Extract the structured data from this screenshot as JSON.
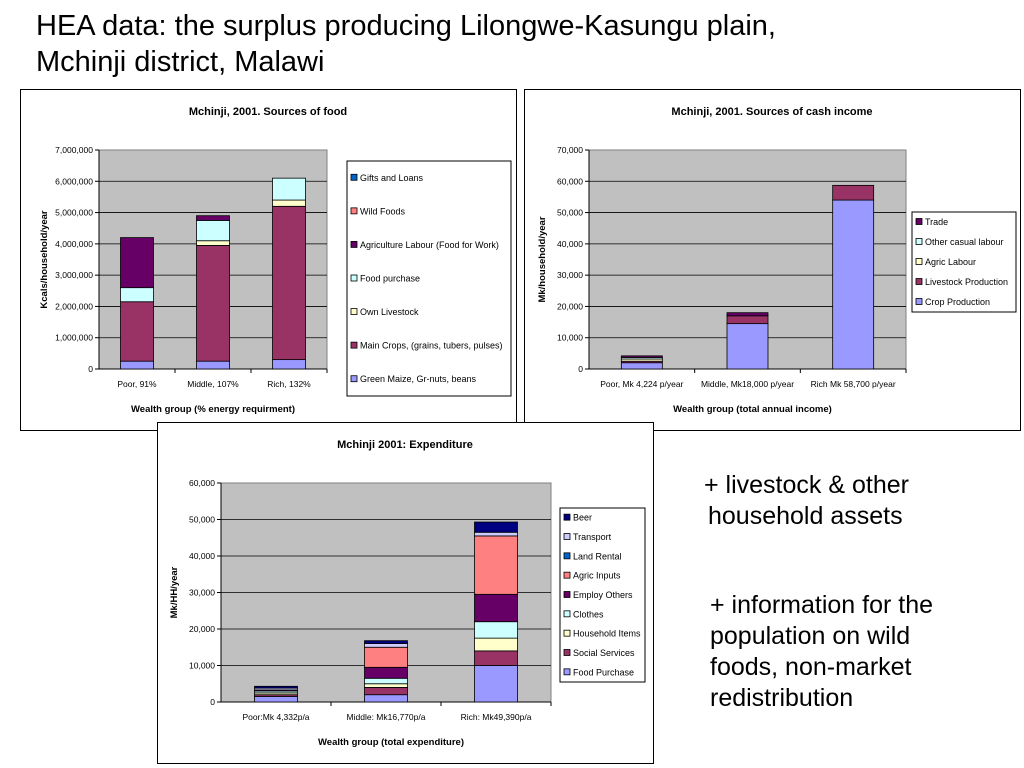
{
  "slide": {
    "title_line1": "HEA data: the surplus producing Lilongwe-Kasungu plain,",
    "title_line2": "Mchinji district, Malawi",
    "note1_line1": "+ livestock & other",
    "note1_line2": "household assets",
    "note2_line1": "+ information for the",
    "note2_line2": "population on wild",
    "note2_line3": "foods, non-market",
    "note2_line4": "redistribution"
  },
  "chart_data": [
    {
      "type": "bar",
      "stacked": true,
      "title": "Mchinji, 2001. Sources of food",
      "xlabel": "Wealth group (% energy requirment)",
      "ylabel": "Kcals/household/year",
      "ylim": [
        0,
        7000000
      ],
      "yticks": [
        "0",
        "1,000,000",
        "2,000,000",
        "3,000,000",
        "4,000,000",
        "5,000,000",
        "6,000,000",
        "7,000,000"
      ],
      "categories": [
        "Poor, 91%",
        "Middle, 107%",
        "Rich, 132%"
      ],
      "series": [
        {
          "name": "Green Maize, Gr-nuts, beans",
          "color": "#9999ff",
          "values": [
            250000,
            250000,
            300000
          ]
        },
        {
          "name": "Main Crops, (grains, tubers, pulses)",
          "color": "#993366",
          "values": [
            1900000,
            3700000,
            4900000
          ]
        },
        {
          "name": "Own Livestock",
          "color": "#ffffcc",
          "values": [
            0,
            150000,
            200000
          ]
        },
        {
          "name": "Food purchase",
          "color": "#ccffff",
          "values": [
            450000,
            650000,
            700000
          ]
        },
        {
          "name": "Agriculture Labour (Food for Work)",
          "color": "#660066",
          "values": [
            1600000,
            150000,
            0
          ]
        },
        {
          "name": "Wild Foods",
          "color": "#ff8080",
          "values": [
            0,
            0,
            0
          ]
        },
        {
          "name": "Gifts and Loans",
          "color": "#0066cc",
          "values": [
            0,
            0,
            0
          ]
        }
      ],
      "legend": "right",
      "grid": true
    },
    {
      "type": "bar",
      "stacked": true,
      "title": "Mchinji, 2001. Sources of cash income",
      "xlabel": "Wealth group (total annual income)",
      "ylabel": "Mk/household/year",
      "ylim": [
        0,
        70000
      ],
      "yticks": [
        "0",
        "10,000",
        "20,000",
        "30,000",
        "40,000",
        "50,000",
        "60,000",
        "70,000"
      ],
      "categories": [
        "Poor, Mk 4,224 p/year",
        "Middle, Mk18,000 p/year",
        "Rich Mk 58,700 p/year"
      ],
      "series": [
        {
          "name": "Crop Production",
          "color": "#9999ff",
          "values": [
            2000,
            14500,
            54000
          ]
        },
        {
          "name": "Livestock Production",
          "color": "#993366",
          "values": [
            500,
            2500,
            4700
          ]
        },
        {
          "name": "Agric Labour",
          "color": "#ffffcc",
          "values": [
            700,
            0,
            0
          ]
        },
        {
          "name": "Other casual labour",
          "color": "#ccffff",
          "values": [
            500,
            0,
            0
          ]
        },
        {
          "name": "Trade",
          "color": "#660066",
          "values": [
            500,
            1000,
            0
          ]
        }
      ],
      "legend": "right",
      "grid": true
    },
    {
      "type": "bar",
      "stacked": true,
      "title": "Mchinji 2001: Expenditure",
      "xlabel": "Wealth group (total expenditure)",
      "ylabel": "Mk/HH/year",
      "ylim": [
        0,
        60000
      ],
      "yticks": [
        "0",
        "10,000",
        "20,000",
        "30,000",
        "40,000",
        "50,000",
        "60,000"
      ],
      "categories": [
        "Poor:Mk 4,332p/a",
        "Middle: Mk16,770p/a",
        "Rich: Mk49,390p/a"
      ],
      "series": [
        {
          "name": "Food Purchase",
          "color": "#9999ff",
          "values": [
            1500,
            2000,
            10000
          ]
        },
        {
          "name": "Social Services",
          "color": "#993366",
          "values": [
            500,
            2000,
            4000
          ]
        },
        {
          "name": "Household Items",
          "color": "#ffffcc",
          "values": [
            500,
            1000,
            3500
          ]
        },
        {
          "name": "Clothes",
          "color": "#ccffff",
          "values": [
            500,
            1500,
            4500
          ]
        },
        {
          "name": "Employ Others",
          "color": "#660066",
          "values": [
            300,
            3000,
            7500
          ]
        },
        {
          "name": "Agric Inputs",
          "color": "#ff8080",
          "values": [
            0,
            5500,
            16000
          ]
        },
        {
          "name": "Land Rental",
          "color": "#0066cc",
          "values": [
            0,
            0,
            0
          ]
        },
        {
          "name": "Transport",
          "color": "#ccccff",
          "values": [
            500,
            1000,
            1000
          ]
        },
        {
          "name": "Beer",
          "color": "#000080",
          "values": [
            500,
            800,
            2800
          ]
        }
      ],
      "legend": "right",
      "grid": true
    }
  ]
}
